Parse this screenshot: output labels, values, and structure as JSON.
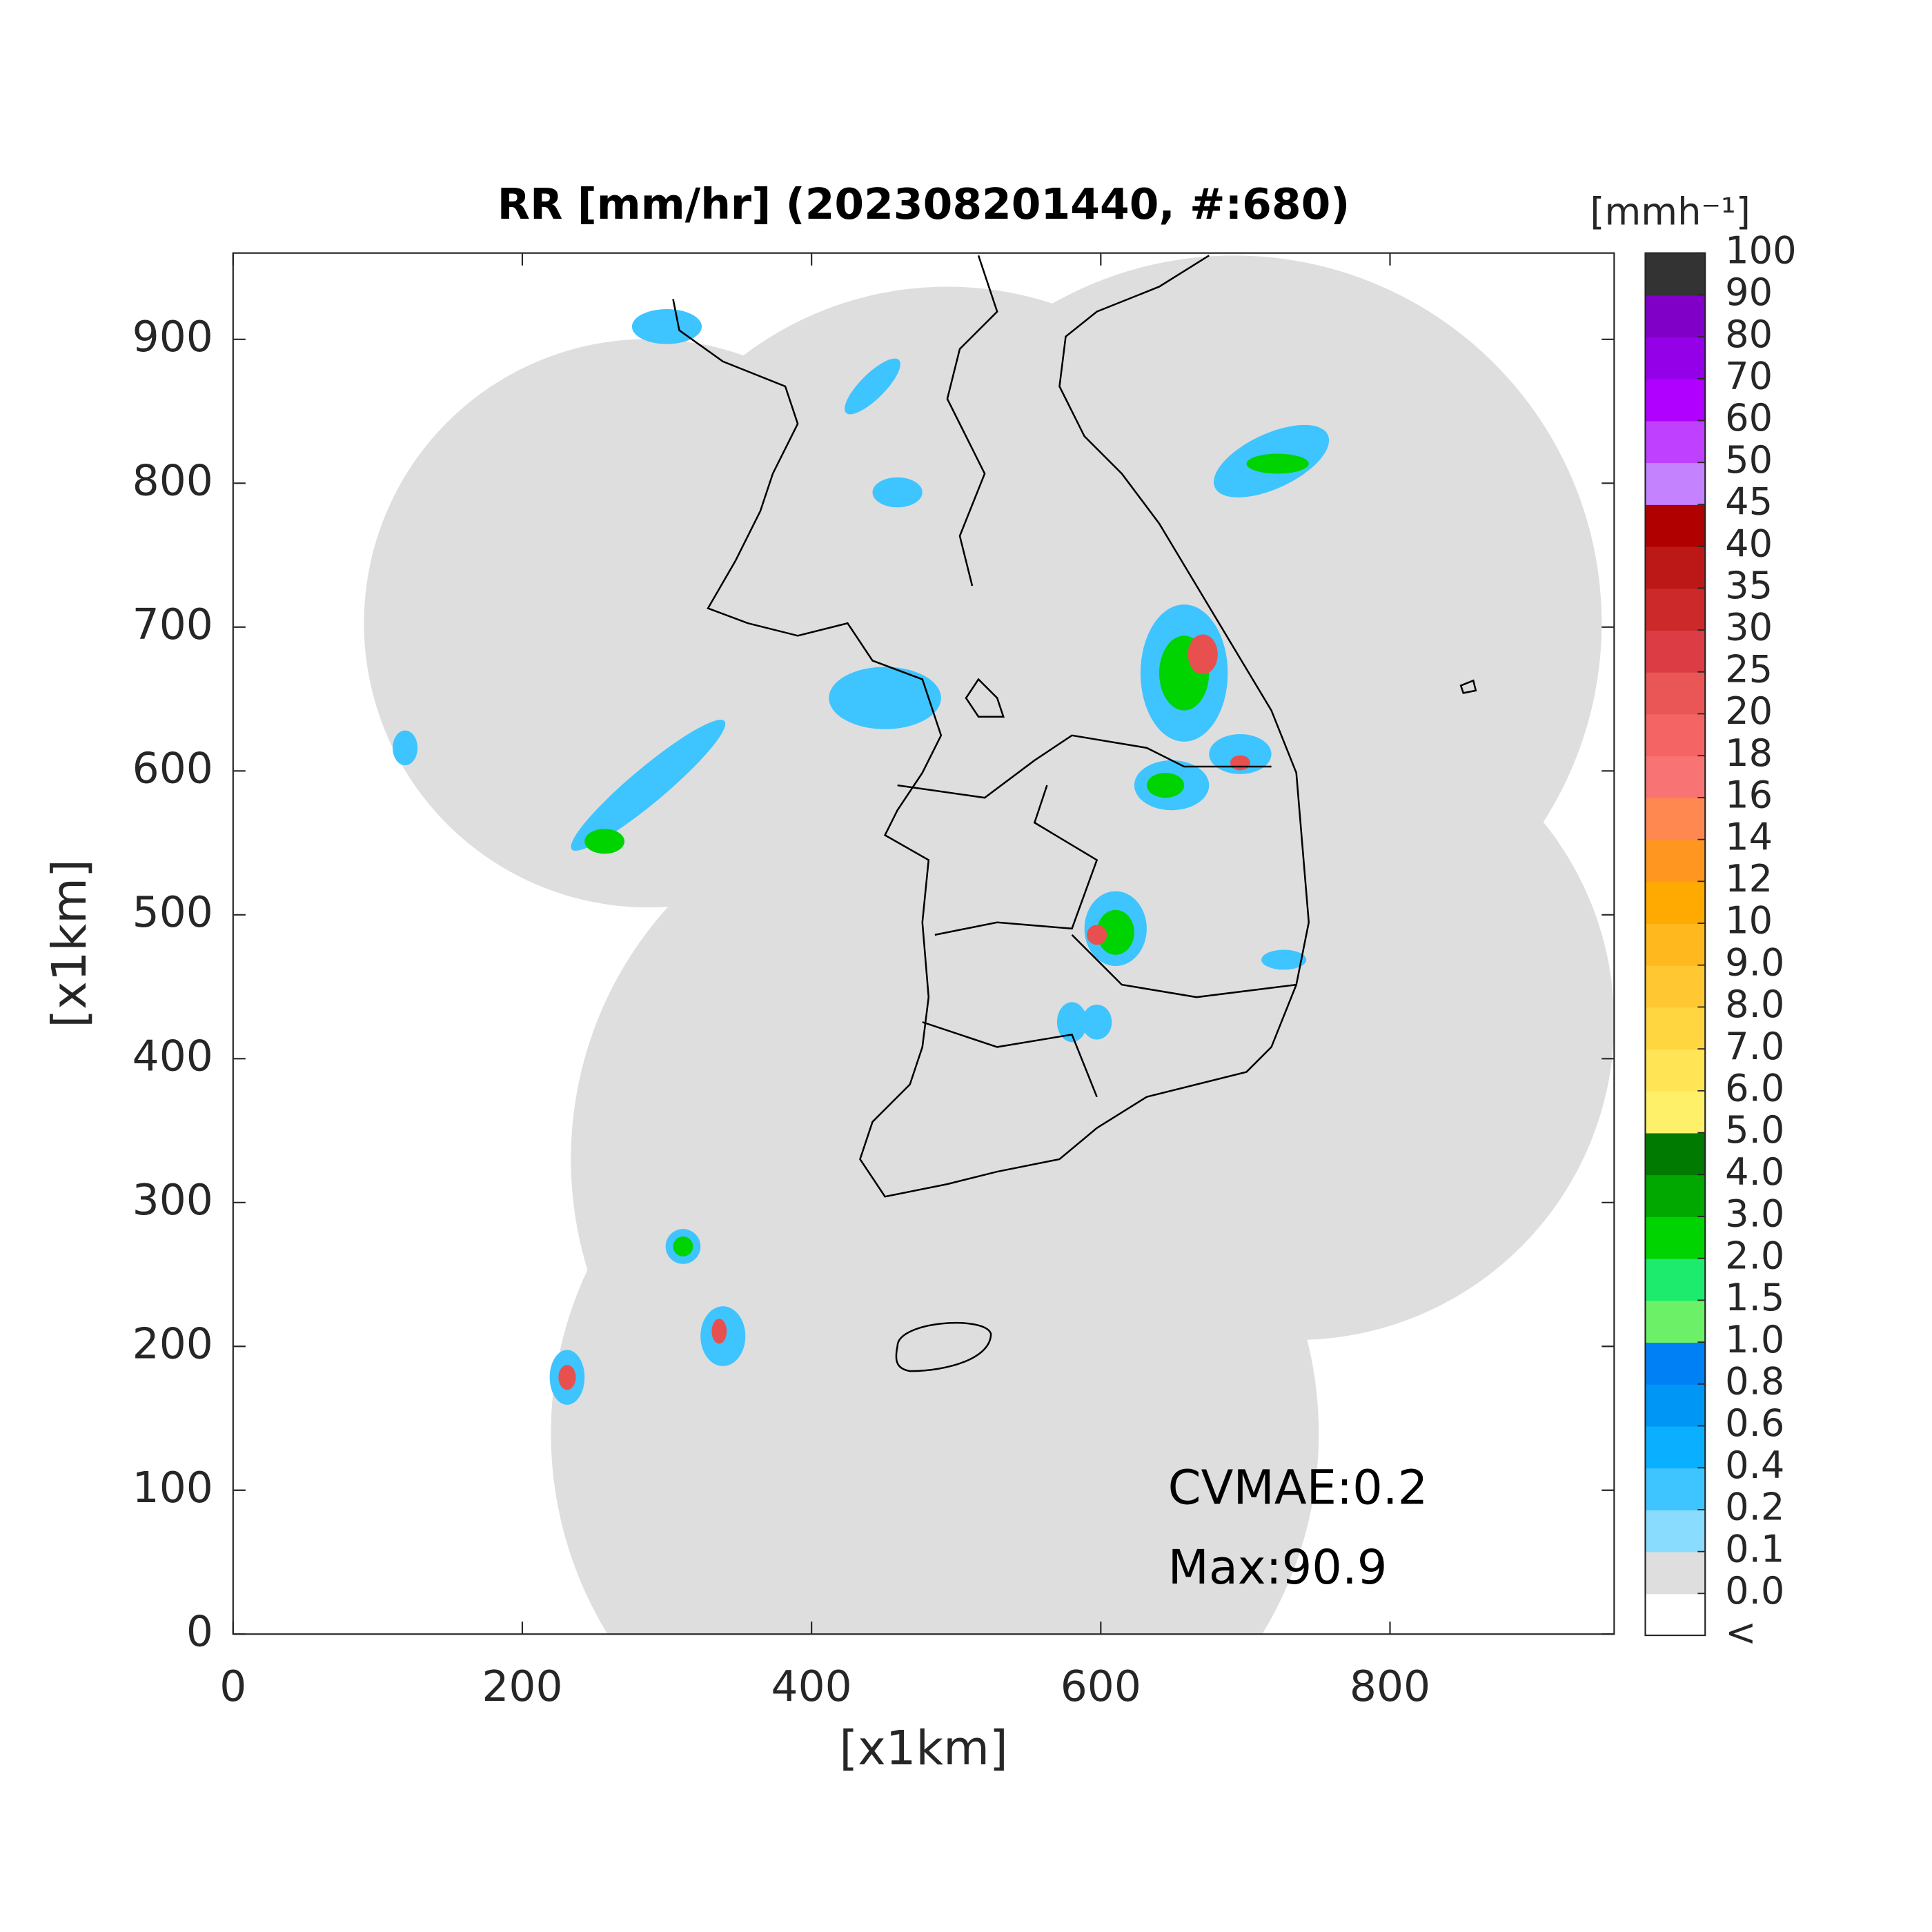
{
  "chart_data": {
    "type": "radar_map",
    "title": "RR [mm/hr] (202308201440, #:680)",
    "xlabel": "[x1km]",
    "ylabel": "[x1km]",
    "xlim": [
      0,
      955
    ],
    "ylim": [
      0,
      960
    ],
    "xticks": [
      0,
      200,
      400,
      600,
      800
    ],
    "yticks": [
      0,
      100,
      200,
      300,
      400,
      500,
      600,
      700,
      800,
      900
    ],
    "annotations": [
      "CVMAE:0.2",
      "Max:90.9"
    ],
    "colorbar": {
      "title": "[mmh⁻¹]",
      "ticks": [
        "<",
        {
          "value": 0,
          "label": "0.0"
        },
        0.1,
        0.2,
        0.4,
        0.6,
        0.8,
        {
          "value": 1,
          "label": "1.0"
        },
        1.5,
        {
          "value": 2,
          "label": "2.0"
        },
        {
          "value": 3,
          "label": "3.0"
        },
        {
          "value": 4,
          "label": "4.0"
        },
        {
          "value": 5,
          "label": "5.0"
        },
        {
          "value": 6,
          "label": "6.0"
        },
        {
          "value": 7,
          "label": "7.0"
        },
        {
          "value": 8,
          "label": "8.0"
        },
        {
          "value": 9,
          "label": "9.0"
        },
        10,
        12,
        14,
        16,
        18,
        20,
        25,
        30,
        35,
        40,
        45,
        50,
        60,
        70,
        80,
        90,
        100
      ],
      "colors": [
        "#ffffff",
        "#dedede",
        "#8adcff",
        "#3ec4ff",
        "#0ab0ff",
        "#0096f5",
        "#0080f5",
        "#6cf068",
        "#1ceb6e",
        "#00d400",
        "#00a800",
        "#007a00",
        "#fff06a",
        "#ffe456",
        "#ffd540",
        "#ffc732",
        "#ffb81e",
        "#ffaa00",
        "#ff9620",
        "#ff8850",
        "#f87474",
        "#f46464",
        "#ea5656",
        "#dc3c44",
        "#cc2a2a",
        "#bc1818",
        "#b00000",
        "#c482ff",
        "#c040ff",
        "#b000ff",
        "#9400e8",
        "#8000c8",
        "#333333"
      ]
    }
  }
}
